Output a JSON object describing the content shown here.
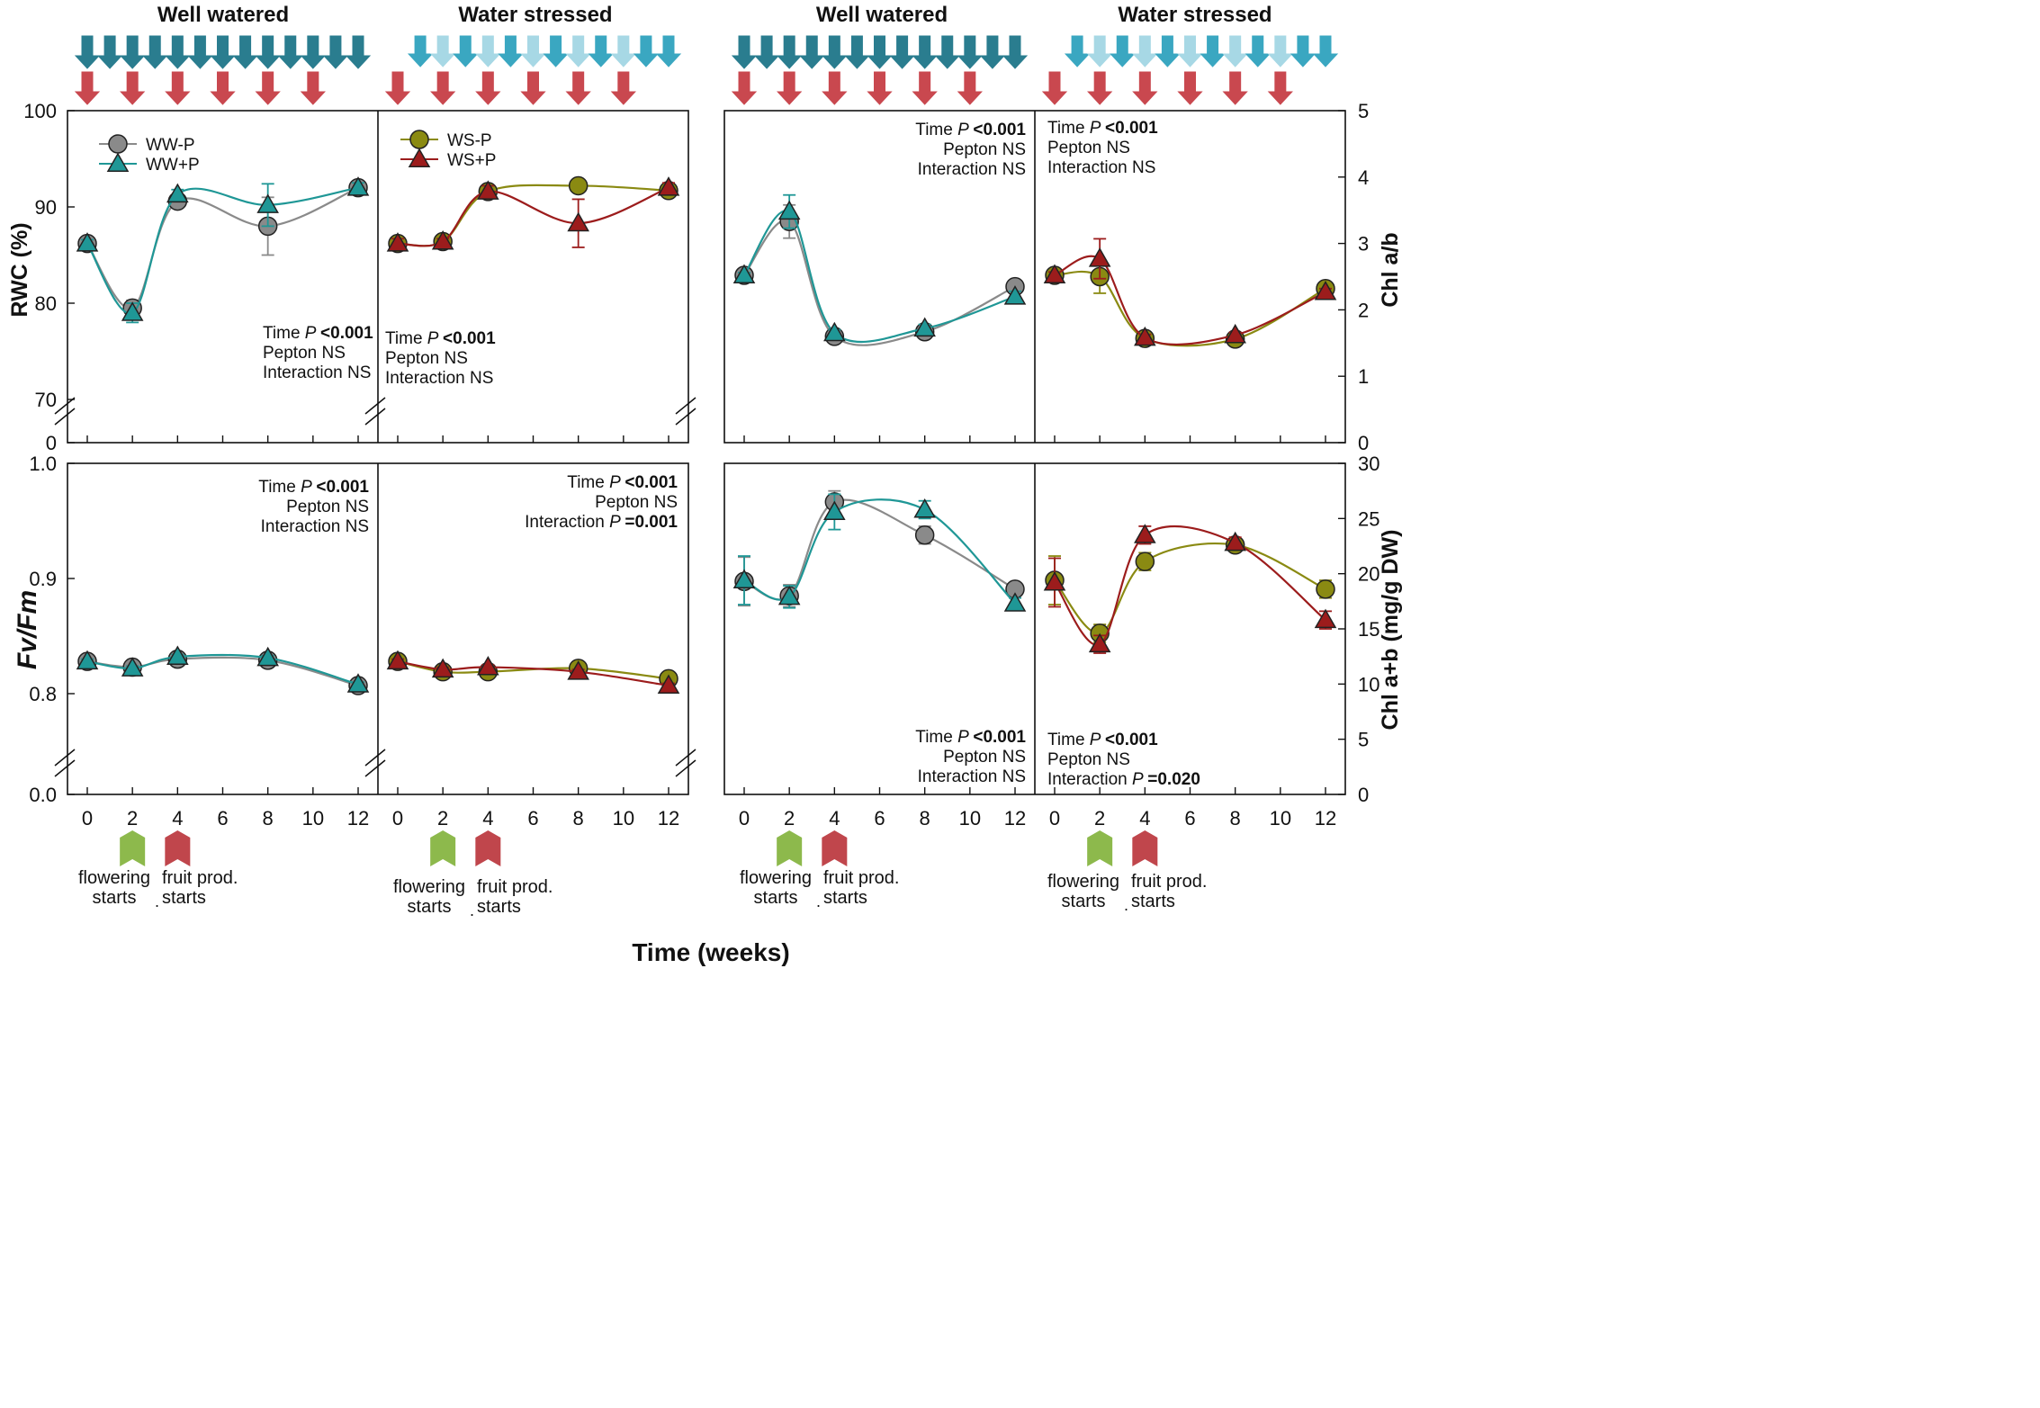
{
  "figure": {
    "x_label": "Time (weeks)",
    "groups": {
      "well_watered": "Well watered",
      "water_stressed": "Water stressed"
    },
    "event_markers": [
      {
        "label_line1": "flowering",
        "label_line2": "starts",
        "week": 2,
        "color": "#8db94c"
      },
      {
        "label_line1": "fruit prod.",
        "label_line2": "starts",
        "week": 4,
        "color": "#c0464c"
      }
    ],
    "event_dot": ".",
    "irrigation_arrows": {
      "full_irrigation_weeks": [
        0,
        1,
        2,
        3,
        4,
        5,
        6,
        7,
        8,
        9,
        10,
        11,
        12
      ],
      "full_irrigation_color": "#2a7d8f",
      "reduced_irrigation_color_dark": "#3aa7c1",
      "reduced_irrigation_color_light": "#a7d8e5",
      "peptone_weeks": [
        0,
        2,
        4,
        6,
        8,
        10
      ],
      "peptone_color": "#c9484f"
    }
  },
  "colors": {
    "WW-P": "#8a8a8a",
    "WW+P": "#1f9796",
    "WS-P": "#8a8a12",
    "WS+P": "#9c1c1c"
  },
  "chart_data": [
    {
      "id": "rwc",
      "type": "line",
      "ylabel": "RWC (%)",
      "ylim": [
        70,
        100
      ],
      "axis_break": true,
      "y_ticks": [
        "70",
        "80",
        "90",
        "100"
      ],
      "y_zero_label": "0",
      "x_ticks": [
        0,
        2,
        4,
        6,
        8,
        10,
        12
      ],
      "panels": [
        {
          "group": "Well watered",
          "series": [
            {
              "name": "WW-P",
              "marker": "circle",
              "x": [
                0,
                2,
                4,
                8,
                12
              ],
              "values": [
                86.2,
                79.5,
                90.6,
                88.0,
                92.0
              ],
              "error": [
                0.4,
                0.8,
                0.4,
                3.0,
                0.5
              ]
            },
            {
              "name": "WW+P",
              "marker": "triangle",
              "x": [
                0,
                2,
                4,
                8,
                12
              ],
              "values": [
                86.2,
                79.0,
                91.3,
                90.2,
                92.0
              ],
              "error": [
                0.4,
                1.0,
                0.5,
                2.2,
                0.5
              ]
            }
          ],
          "stats": [
            "Time P <0.001",
            "Pepton NS",
            "Interaction NS"
          ]
        },
        {
          "group": "Water stressed",
          "series": [
            {
              "name": "WS-P",
              "marker": "circle",
              "x": [
                0,
                2,
                4,
                8,
                12
              ],
              "values": [
                86.2,
                86.4,
                91.6,
                92.2,
                91.7
              ],
              "error": [
                0.5,
                0.3,
                0.5,
                0.3,
                0.5
              ]
            },
            {
              "name": "WS+P",
              "marker": "triangle",
              "x": [
                0,
                2,
                4,
                8,
                12
              ],
              "values": [
                86.2,
                86.4,
                91.6,
                88.3,
                92.0
              ],
              "error": [
                0.5,
                0.3,
                0.6,
                2.5,
                0.5
              ]
            }
          ],
          "stats": [
            "Time P <0.001",
            "Pepton NS",
            "Interaction NS"
          ]
        }
      ]
    },
    {
      "id": "chl_ab_ratio",
      "type": "line",
      "ylabel": "Chl a/b",
      "ylim": [
        0,
        5
      ],
      "y_ticks": [
        "0",
        "1",
        "2",
        "3",
        "4",
        "5"
      ],
      "x_ticks": [
        0,
        2,
        4,
        6,
        8,
        10,
        12
      ],
      "panels": [
        {
          "group": "Well watered",
          "series": [
            {
              "name": "WW-P",
              "marker": "circle",
              "x": [
                0,
                2,
                4,
                8,
                12
              ],
              "values": [
                2.52,
                3.33,
                1.6,
                1.67,
                2.35
              ],
              "error": [
                0.04,
                0.25,
                0.05,
                0.06,
                0.05
              ]
            },
            {
              "name": "WW+P",
              "marker": "triangle",
              "x": [
                0,
                2,
                4,
                8,
                12
              ],
              "values": [
                2.52,
                3.48,
                1.65,
                1.72,
                2.2
              ],
              "error": [
                0.04,
                0.25,
                0.05,
                0.06,
                0.08
              ]
            }
          ],
          "stats": [
            "Time P <0.001",
            "Pepton NS",
            "Interaction NS"
          ]
        },
        {
          "group": "Water stressed",
          "series": [
            {
              "name": "WS-P",
              "marker": "circle",
              "x": [
                0,
                2,
                4,
                8,
                12
              ],
              "values": [
                2.52,
                2.5,
                1.57,
                1.56,
                2.32
              ],
              "error": [
                0.05,
                0.25,
                0.05,
                0.04,
                0.05
              ]
            },
            {
              "name": "WS+P",
              "marker": "triangle",
              "x": [
                0,
                2,
                4,
                8,
                12
              ],
              "values": [
                2.52,
                2.77,
                1.58,
                1.62,
                2.27
              ],
              "error": [
                0.05,
                0.3,
                0.05,
                0.04,
                0.05
              ]
            }
          ],
          "stats": [
            "Time P <0.001",
            "Pepton NS",
            "Interaction NS"
          ]
        }
      ]
    },
    {
      "id": "fv_fm",
      "type": "line",
      "ylabel": "Fv/Fm",
      "ylim": [
        0.75,
        1.0
      ],
      "axis_break": true,
      "y_ticks": [
        "0.8",
        "0.9",
        "1.0"
      ],
      "y_zero_label": "0.0",
      "x_ticks": [
        0,
        2,
        4,
        6,
        8,
        10,
        12
      ],
      "panels": [
        {
          "group": "Well watered",
          "series": [
            {
              "name": "WW-P",
              "marker": "circle",
              "x": [
                0,
                2,
                4,
                8,
                12
              ],
              "values": [
                0.828,
                0.823,
                0.83,
                0.829,
                0.807
              ],
              "error": [
                0.002,
                0.002,
                0.002,
                0.002,
                0.002
              ]
            },
            {
              "name": "WW+P",
              "marker": "triangle",
              "x": [
                0,
                2,
                4,
                8,
                12
              ],
              "values": [
                0.828,
                0.822,
                0.832,
                0.831,
                0.808
              ],
              "error": [
                0.002,
                0.002,
                0.002,
                0.002,
                0.002
              ]
            }
          ],
          "stats": [
            "Time P <0.001",
            "Pepton NS",
            "Interaction NS"
          ]
        },
        {
          "group": "Water stressed",
          "series": [
            {
              "name": "WS-P",
              "marker": "circle",
              "x": [
                0,
                2,
                4,
                8,
                12
              ],
              "values": [
                0.828,
                0.819,
                0.819,
                0.822,
                0.813
              ],
              "error": [
                0.002,
                0.002,
                0.002,
                0.002,
                0.002
              ]
            },
            {
              "name": "WS+P",
              "marker": "triangle",
              "x": [
                0,
                2,
                4,
                8,
                12
              ],
              "values": [
                0.828,
                0.821,
                0.823,
                0.819,
                0.807
              ],
              "error": [
                0.002,
                0.002,
                0.002,
                0.002,
                0.002
              ]
            }
          ],
          "stats": [
            "Time P <0.001",
            "Pepton NS",
            "Interaction P =0.001"
          ]
        }
      ]
    },
    {
      "id": "chl_total",
      "type": "line",
      "ylabel": "Chl a+b (mg/g DW)",
      "ylim": [
        0,
        30
      ],
      "y_ticks": [
        "0",
        "5",
        "10",
        "15",
        "20",
        "25",
        "30"
      ],
      "x_ticks": [
        0,
        2,
        4,
        6,
        8,
        10,
        12
      ],
      "panels": [
        {
          "group": "Well watered",
          "series": [
            {
              "name": "WW-P",
              "marker": "circle",
              "x": [
                0,
                2,
                4,
                8,
                12
              ],
              "values": [
                19.3,
                18.0,
                26.5,
                23.5,
                18.6
              ],
              "error": [
                2.2,
                1.0,
                1.0,
                0.8,
                0.5
              ]
            },
            {
              "name": "WW+P",
              "marker": "triangle",
              "x": [
                0,
                2,
                4,
                8,
                12
              ],
              "values": [
                19.4,
                17.9,
                25.6,
                25.8,
                17.3
              ],
              "error": [
                2.2,
                1.0,
                1.6,
                0.8,
                0.5
              ]
            }
          ],
          "stats": [
            "Time P <0.001",
            "Pepton NS",
            "Interaction NS"
          ]
        },
        {
          "group": "Water stressed",
          "series": [
            {
              "name": "WS-P",
              "marker": "circle",
              "x": [
                0,
                2,
                4,
                8,
                12
              ],
              "values": [
                19.4,
                14.6,
                21.1,
                22.6,
                18.6
              ],
              "error": [
                2.2,
                0.8,
                0.8,
                0.5,
                0.8
              ]
            },
            {
              "name": "WS+P",
              "marker": "triangle",
              "x": [
                0,
                2,
                4,
                8,
                12
              ],
              "values": [
                19.2,
                13.6,
                23.5,
                22.8,
                15.8
              ],
              "error": [
                2.2,
                0.8,
                0.8,
                0.5,
                0.8
              ]
            }
          ],
          "stats": [
            "Time P <0.001",
            "Pepton NS",
            "Interaction P =0.020"
          ]
        }
      ]
    }
  ]
}
